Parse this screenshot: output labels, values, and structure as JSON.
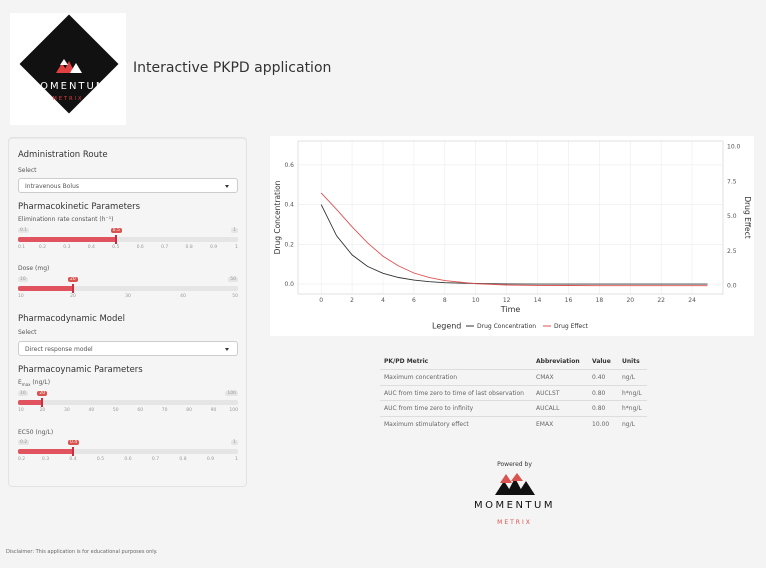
{
  "header": {
    "logo_word": "MOMENTUM",
    "logo_sub": "METRIX",
    "title": "Interactive PKPD application"
  },
  "sidebar": {
    "route": {
      "heading": "Administration Route",
      "select_label": "Select",
      "value": "Intravenous Bolus"
    },
    "pk": {
      "heading": "Pharmacokinetic Parameters",
      "elim": {
        "label": "Eliminationn rate constant (h⁻¹)",
        "min": "0.1",
        "max": "1",
        "value": "0.5",
        "fraction": 0.444,
        "ticks": [
          "0.1",
          "0.2",
          "0.3",
          "0.4",
          "0.5",
          "0.6",
          "0.7",
          "0.8",
          "0.9",
          "1"
        ]
      },
      "dose": {
        "label": "Dose (mg)",
        "min": "10",
        "max": "50",
        "value": "20",
        "fraction": 0.25,
        "ticks": [
          "10",
          "20",
          "30",
          "40",
          "50"
        ]
      }
    },
    "pd_model": {
      "heading": "Pharmacodynamic Model",
      "select_label": "Select",
      "value": "Direct response model"
    },
    "pd": {
      "heading": "Pharmacoynamic Parameters",
      "emax": {
        "label_main": "E",
        "label_sub": "max",
        "label_unit": " (ng/L)",
        "min": "10",
        "max": "100",
        "value": "20",
        "fraction": 0.111,
        "ticks": [
          "10",
          "20",
          "30",
          "40",
          "50",
          "60",
          "70",
          "80",
          "90",
          "100"
        ]
      },
      "ec50": {
        "label": "EC50 (ng/L)",
        "min": "0.2",
        "max": "1",
        "value": "0.4",
        "fraction": 0.25,
        "ticks": [
          "0.2",
          "0.3",
          "0.4",
          "0.5",
          "0.6",
          "0.7",
          "0.8",
          "0.9",
          "1"
        ]
      }
    }
  },
  "chart_data": {
    "type": "line",
    "xlabel": "Time",
    "ylabel": "Drug Concentration",
    "y2label": "Drug Effect",
    "xlim": [
      -1.5,
      26
    ],
    "ylim": [
      -0.05,
      0.72
    ],
    "y2lim": [
      -0.6,
      10.4
    ],
    "x_ticks": [
      "0",
      "2",
      "4",
      "6",
      "8",
      "10",
      "12",
      "14",
      "16",
      "18",
      "20",
      "22",
      "24"
    ],
    "y_ticks": [
      "0.0",
      "0.2",
      "0.4",
      "0.6"
    ],
    "y2_ticks": [
      "0.0",
      "2.5",
      "5.0",
      "7.5",
      "10.0"
    ],
    "legend_title": "Legend",
    "legend_position": "bottom",
    "series": [
      {
        "name": "Drug Concentration",
        "color": "#333333",
        "axis": "left",
        "x": [
          0,
          1,
          2,
          3,
          4,
          5,
          6,
          7,
          8,
          10,
          12,
          14,
          16,
          18,
          20,
          22,
          24,
          25
        ],
        "y": [
          0.4,
          0.243,
          0.147,
          0.089,
          0.054,
          0.033,
          0.02,
          0.012,
          0.007,
          0.003,
          0.001,
          0,
          0,
          0,
          0,
          0,
          0,
          0
        ]
      },
      {
        "name": "Drug Effect",
        "color": "#e05050",
        "axis": "right",
        "x": [
          0,
          1,
          2,
          3,
          4,
          5,
          6,
          7,
          8,
          10,
          12,
          14,
          16,
          18,
          20,
          22,
          24,
          25
        ],
        "y": [
          6.67,
          5.48,
          4.23,
          3.08,
          2.12,
          1.42,
          0.91,
          0.58,
          0.36,
          0.14,
          0.05,
          0.02,
          0.01,
          0,
          0,
          0,
          0,
          0
        ]
      }
    ]
  },
  "metrics": {
    "headers": [
      "PK/PD Metric",
      "Abbreviation",
      "Value",
      "Units"
    ],
    "rows": [
      [
        "Maximum concentration",
        "CMAX",
        "0.40",
        "ng/L"
      ],
      [
        "AUC from time zero to time of last observation",
        "AUCLST",
        "0.80",
        "h*ng/L"
      ],
      [
        "AUC from time zero to infinity",
        "AUCALL",
        "0.80",
        "h*ng/L"
      ],
      [
        "Maximum stimulatory effect",
        "EMAX",
        "10.00",
        "ng/L"
      ]
    ]
  },
  "footer": {
    "powered_by": "Powered by",
    "word": "MOMENTUM",
    "sub": "METRIX",
    "disclaimer": "Disclaimer: This application is for educational purposes only."
  },
  "colors": {
    "accent": "#e0535f",
    "brand_red": "#d9534f"
  }
}
